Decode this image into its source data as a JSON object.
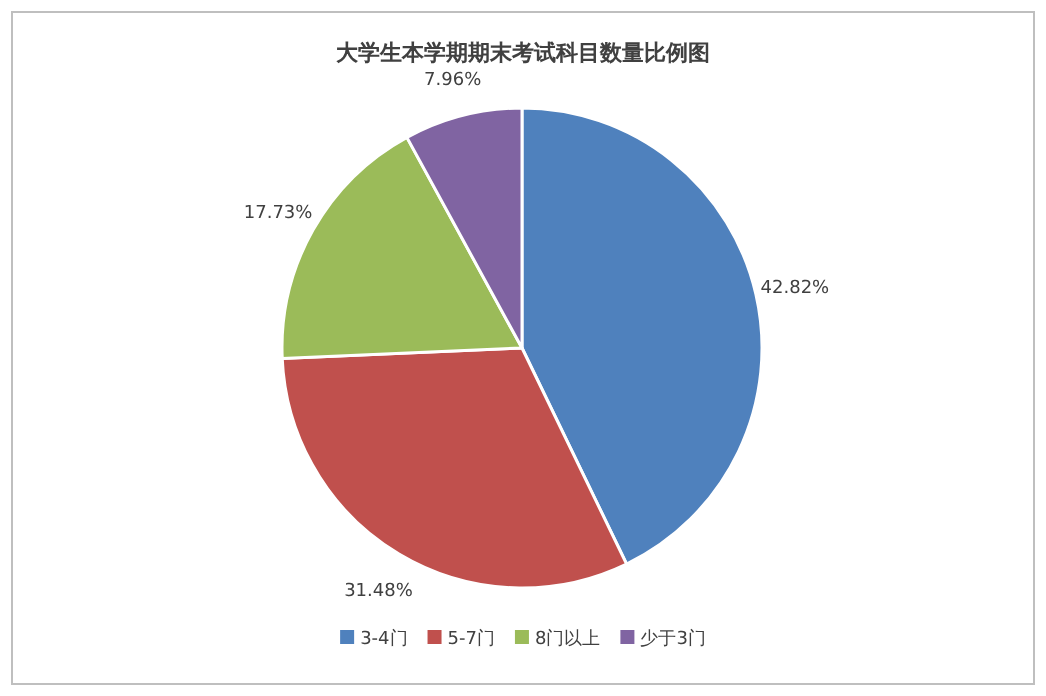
{
  "chart_data": {
    "type": "pie",
    "title": "大学生本学期期末考试科目数量比例图",
    "categories": [
      "3-4门",
      "5-7门",
      "8门以上",
      "少于3门"
    ],
    "values": [
      42.82,
      31.48,
      17.73,
      7.96
    ],
    "value_labels": [
      "42.82%",
      "31.48%",
      "17.73%",
      "7.96%"
    ],
    "colors": [
      "#4f81bd",
      "#c0504d",
      "#9bbb59",
      "#8064a2"
    ],
    "legend": "bottom"
  }
}
